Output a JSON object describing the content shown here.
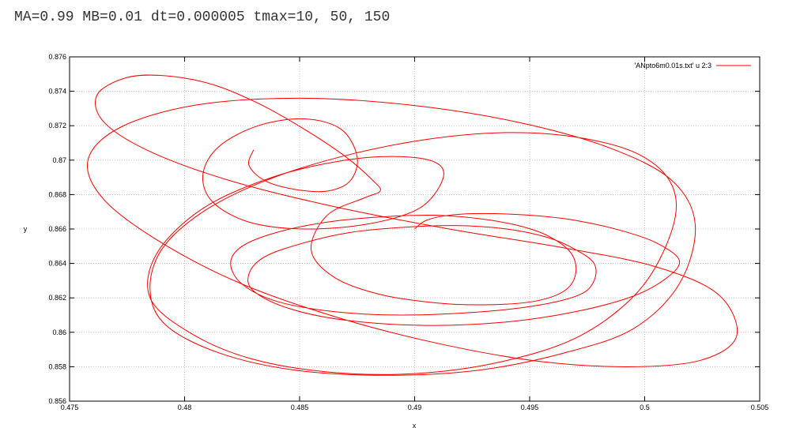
{
  "caption": "MA=0.99 MB=0.01 dt=0.000005 tmax=10, 50, 150",
  "chart_data": {
    "type": "line",
    "title": "",
    "xlabel": "x",
    "ylabel": "y",
    "xlim": [
      0.475,
      0.505
    ],
    "ylim": [
      0.856,
      0.876
    ],
    "x_ticks": [
      "0.475",
      "0.48",
      "0.485",
      "0.49",
      "0.495",
      "0.5",
      "0.505"
    ],
    "y_ticks": [
      "0.856",
      "0.858",
      "0.86",
      "0.862",
      "0.864",
      "0.866",
      "0.868",
      "0.87",
      "0.872",
      "0.874",
      "0.876"
    ],
    "grid": true,
    "legend_position": "top-right",
    "line_color": "#ff0000",
    "series": [
      {
        "name": "'ANpto6m0.01s.txt' u 2:3",
        "color": "#ff0000",
        "x": [
          0.49,
          0.4905,
          0.4915,
          0.493,
          0.495,
          0.497,
          0.499,
          0.5005,
          0.5015,
          0.501,
          0.4995,
          0.497,
          0.494,
          0.4905,
          0.487,
          0.4845,
          0.483,
          0.4828,
          0.4835,
          0.4852,
          0.4872,
          0.4895,
          0.4918,
          0.494,
          0.4958,
          0.497,
          0.4978,
          0.4978,
          0.4972,
          0.4955,
          0.493,
          0.4895,
          0.4865,
          0.484,
          0.4825,
          0.482,
          0.4825,
          0.484,
          0.4862,
          0.4885,
          0.4908,
          0.4928,
          0.4945,
          0.4958,
          0.4968,
          0.497,
          0.4965,
          0.4952,
          0.4932,
          0.491,
          0.4885,
          0.4865,
          0.4855,
          0.4862,
          0.4878,
          0.4885,
          0.4882,
          0.487,
          0.4852,
          0.4832,
          0.4812,
          0.4792,
          0.4775,
          0.4762,
          0.4765,
          0.4785,
          0.482,
          0.4865,
          0.4915,
          0.4965,
          0.5005,
          0.5032,
          0.504,
          0.5025,
          0.4995,
          0.4955,
          0.4912,
          0.4868,
          0.4825,
          0.479,
          0.4765,
          0.4758,
          0.4772,
          0.4805,
          0.485,
          0.4898,
          0.4945,
          0.4985,
          0.5012,
          0.5022,
          0.5015,
          0.4995,
          0.4965,
          0.4928,
          0.4888,
          0.4848,
          0.4815,
          0.4792,
          0.4785,
          0.479,
          0.4808,
          0.4835,
          0.4868,
          0.4905,
          0.494,
          0.4972,
          0.4998,
          0.5012,
          0.5012,
          0.4998,
          0.4972,
          0.4938,
          0.49,
          0.4862,
          0.4828,
          0.4802,
          0.4785,
          0.4788,
          0.4808,
          0.4838,
          0.487,
          0.4895,
          0.491,
          0.4912,
          0.4902,
          0.488,
          0.4852,
          0.4828,
          0.4812,
          0.4808,
          0.4815,
          0.4832,
          0.4852,
          0.4868,
          0.4875,
          0.4872,
          0.4862,
          0.4848,
          0.4835,
          0.4828,
          0.483
        ],
        "y": [
          0.866,
          0.8665,
          0.8668,
          0.8669,
          0.8668,
          0.8665,
          0.8659,
          0.8652,
          0.8642,
          0.8632,
          0.8621,
          0.8612,
          0.8606,
          0.8604,
          0.8607,
          0.8614,
          0.8624,
          0.8634,
          0.8644,
          0.8652,
          0.8658,
          0.8661,
          0.8662,
          0.866,
          0.8655,
          0.8648,
          0.864,
          0.863,
          0.8622,
          0.8616,
          0.8612,
          0.861,
          0.8612,
          0.8618,
          0.8628,
          0.864,
          0.865,
          0.8658,
          0.8664,
          0.8667,
          0.8668,
          0.8666,
          0.8662,
          0.8656,
          0.8646,
          0.8634,
          0.8624,
          0.8618,
          0.8616,
          0.8617,
          0.8622,
          0.8632,
          0.8648,
          0.8668,
          0.8678,
          0.8682,
          0.8688,
          0.8702,
          0.8718,
          0.8733,
          0.8744,
          0.8749,
          0.8748,
          0.8738,
          0.8722,
          0.8705,
          0.8688,
          0.8673,
          0.866,
          0.8649,
          0.8638,
          0.8622,
          0.8598,
          0.8584,
          0.858,
          0.8583,
          0.8593,
          0.8608,
          0.8628,
          0.8652,
          0.8677,
          0.87,
          0.8719,
          0.8732,
          0.8736,
          0.8732,
          0.8722,
          0.8707,
          0.8688,
          0.8662,
          0.8628,
          0.8602,
          0.8588,
          0.8578,
          0.8575,
          0.8578,
          0.8588,
          0.8604,
          0.8624,
          0.8648,
          0.867,
          0.8688,
          0.8702,
          0.8712,
          0.8716,
          0.8713,
          0.8703,
          0.8685,
          0.866,
          0.8625,
          0.8598,
          0.8583,
          0.8576,
          0.8577,
          0.8585,
          0.86,
          0.862,
          0.8646,
          0.8672,
          0.869,
          0.87,
          0.8702,
          0.8698,
          0.8688,
          0.8672,
          0.8663,
          0.866,
          0.8664,
          0.8676,
          0.8692,
          0.8708,
          0.872,
          0.8724,
          0.8718,
          0.8702,
          0.8688,
          0.8682,
          0.8683,
          0.8688,
          0.8697,
          0.8706
        ]
      }
    ]
  }
}
